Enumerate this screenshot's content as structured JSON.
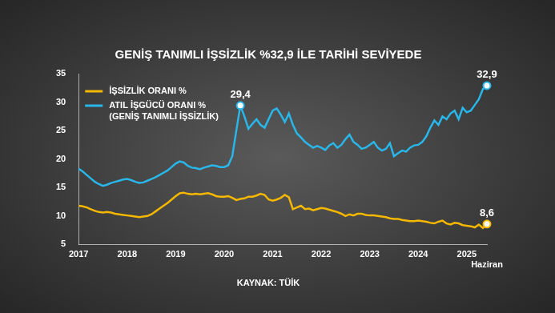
{
  "chart_data": {
    "type": "line",
    "title": "GENİŞ TANIMLI İŞSİZLİK %32,9 İLE TARİHİ SEVİYEDE",
    "source": "KAYNAK: TÜİK",
    "categories": [
      "2017",
      null,
      null,
      null,
      null,
      null,
      null,
      null,
      null,
      null,
      null,
      null,
      "2018",
      null,
      null,
      null,
      null,
      null,
      null,
      null,
      null,
      null,
      null,
      null,
      "2019",
      null,
      null,
      null,
      null,
      null,
      null,
      null,
      null,
      null,
      null,
      null,
      "2020",
      null,
      null,
      null,
      null,
      null,
      null,
      null,
      null,
      null,
      null,
      null,
      "2021",
      null,
      null,
      null,
      null,
      null,
      null,
      null,
      null,
      null,
      null,
      null,
      "2022",
      null,
      null,
      null,
      null,
      null,
      null,
      null,
      null,
      null,
      null,
      null,
      "2023",
      null,
      null,
      null,
      null,
      null,
      null,
      null,
      null,
      null,
      null,
      null,
      "2024",
      null,
      null,
      null,
      null,
      null,
      null,
      null,
      null,
      null,
      null,
      null,
      "2025",
      null,
      null,
      null,
      null,
      "Haziran"
    ],
    "series": [
      {
        "name": "İŞSİZLİK ORANI %",
        "color": "#f5b800",
        "values": [
          11.8,
          11.7,
          11.5,
          11.2,
          10.9,
          10.7,
          10.6,
          10.7,
          10.6,
          10.4,
          10.3,
          10.2,
          10.1,
          10.0,
          9.9,
          9.8,
          9.9,
          10.0,
          10.3,
          10.8,
          11.3,
          11.8,
          12.3,
          12.9,
          13.5,
          14.0,
          14.1,
          13.9,
          13.8,
          13.9,
          13.8,
          13.9,
          14.0,
          13.8,
          13.5,
          13.4,
          13.4,
          13.5,
          13.2,
          12.8,
          13.0,
          13.1,
          13.4,
          13.4,
          13.6,
          13.9,
          13.7,
          12.9,
          12.7,
          12.9,
          13.2,
          13.7,
          13.3,
          11.2,
          11.5,
          11.8,
          11.2,
          11.3,
          11.0,
          11.2,
          11.4,
          11.3,
          11.1,
          10.9,
          10.7,
          10.4,
          10.0,
          10.3,
          10.1,
          10.4,
          10.4,
          10.2,
          10.1,
          10.1,
          10.0,
          9.9,
          9.8,
          9.6,
          9.5,
          9.5,
          9.3,
          9.2,
          9.1,
          9.1,
          9.2,
          9.1,
          9.0,
          8.8,
          8.7,
          9.0,
          9.2,
          8.7,
          8.5,
          8.8,
          8.7,
          8.4,
          8.3,
          8.2,
          8.0,
          8.5,
          7.9,
          8.6
        ]
      },
      {
        "name": "ATIL İŞGÜCÜ ORANI % (GENİŞ TANIMLI İŞSİZLİK)",
        "color": "#29b6e8",
        "values": [
          18.3,
          17.8,
          17.2,
          16.6,
          16.0,
          15.6,
          15.3,
          15.5,
          15.8,
          16.0,
          16.2,
          16.4,
          16.5,
          16.3,
          16.0,
          15.8,
          15.9,
          16.2,
          16.5,
          16.8,
          17.2,
          17.6,
          18.0,
          18.6,
          19.2,
          19.6,
          19.4,
          18.8,
          18.5,
          18.4,
          18.2,
          18.5,
          18.7,
          18.9,
          18.8,
          18.6,
          18.6,
          18.9,
          20.5,
          25.0,
          29.4,
          27.5,
          25.3,
          26.2,
          27.0,
          26.0,
          25.5,
          27.0,
          28.5,
          28.9,
          27.8,
          26.5,
          28.0,
          26.0,
          24.5,
          23.8,
          23.0,
          22.5,
          22.0,
          22.3,
          22.0,
          21.6,
          22.4,
          22.8,
          22.0,
          22.5,
          23.5,
          24.3,
          23.0,
          22.5,
          21.8,
          22.0,
          22.5,
          23.0,
          22.0,
          21.5,
          21.8,
          22.8,
          20.5,
          21.0,
          21.5,
          21.3,
          22.0,
          22.4,
          22.5,
          23.0,
          24.0,
          25.5,
          26.8,
          26.0,
          27.5,
          27.0,
          28.0,
          28.5,
          27.0,
          29.0,
          28.2,
          28.5,
          29.5,
          30.5,
          32.3,
          32.9
        ]
      }
    ],
    "annotations": [
      {
        "series": "ATIL İŞGÜCÜ ORANI % (GENİŞ TANIMLI İŞSİZLİK)",
        "value": 29.4,
        "label": "29,4"
      },
      {
        "series": "ATIL İŞGÜCÜ ORANI % (GENİŞ TANIMLI İŞSİZLİK)",
        "value": 32.9,
        "label": "32,9"
      },
      {
        "series": "İŞSİZLİK ORANI %",
        "value": 8.6,
        "label": "8,6"
      }
    ],
    "ylim": [
      5,
      35
    ],
    "yticks": [
      5,
      10,
      15,
      20,
      25,
      30,
      35
    ],
    "grid": false,
    "legend": "top-left"
  }
}
